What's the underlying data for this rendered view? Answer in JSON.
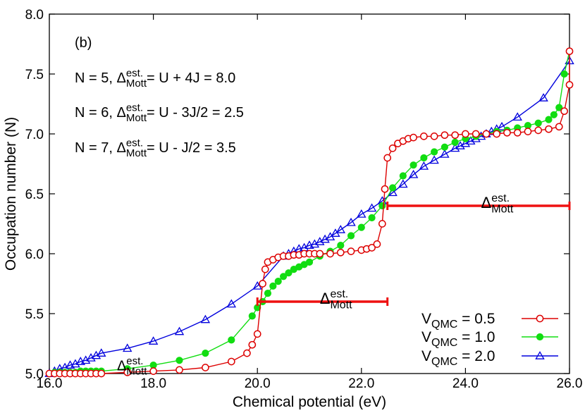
{
  "chart_data": {
    "type": "line",
    "xlabel": "Chemical potential (eV)",
    "ylabel": "Occupation number (N)",
    "xlim": [
      16.0,
      26.0
    ],
    "ylim": [
      5.0,
      8.0
    ],
    "x_ticks": [
      "16.0",
      "18.0",
      "20.0",
      "22.0",
      "24.0",
      "26.0"
    ],
    "y_ticks": [
      "5.0",
      "5.5",
      "6.0",
      "6.5",
      "7.0",
      "7.5",
      "8.0"
    ],
    "grid": false,
    "legend_placement": "bottom-right",
    "panel_label": "(b)",
    "annotations": [
      {
        "prefix": "N = 5, ",
        "sym": "Δ",
        "sub": "Mott",
        "sup": "est.",
        "suffix": " = U + 4J = 8.0"
      },
      {
        "prefix": "N = 6, ",
        "sym": "Δ",
        "sub": "Mott",
        "sup": "est.",
        "suffix": " = U - 3J/2 = 2.5"
      },
      {
        "prefix": "N = 7, ",
        "sym": "Δ",
        "sub": "Mott",
        "sup": "est.",
        "suffix": " = U - J/2 = 3.5"
      }
    ],
    "gap_bars": [
      {
        "x_start": 20.0,
        "x_end": 22.5,
        "y": 5.6,
        "sym": "Δ",
        "sub": "Mott",
        "sup": "est.",
        "label_x": 21.2,
        "label_y": 5.7
      },
      {
        "x_start": 22.5,
        "x_end": 26.0,
        "y": 6.4,
        "sym": "Δ",
        "sub": "Mott",
        "sup": "est.",
        "label_x": 24.3,
        "label_y": 6.5
      }
    ],
    "left_label": {
      "sym": "Δ",
      "sub": "Mott",
      "sup": "est.",
      "x": 17.3,
      "y": 5.18
    },
    "bar_color": "#ee1111",
    "series": [
      {
        "name_main": "V",
        "name_sub": "QMC",
        "name_value": " = 0.5",
        "color": "#dd0000",
        "marker": "open-circle",
        "x": [
          16.0,
          16.1,
          16.2,
          16.3,
          16.4,
          16.5,
          16.6,
          16.7,
          16.8,
          16.9,
          17.0,
          17.5,
          18.0,
          18.5,
          19.0,
          19.5,
          19.8,
          19.9,
          20.0,
          20.1,
          20.15,
          20.2,
          20.3,
          20.4,
          20.5,
          20.6,
          20.7,
          20.8,
          20.9,
          21.0,
          21.1,
          21.2,
          21.4,
          21.6,
          21.8,
          22.0,
          22.1,
          22.2,
          22.3,
          22.4,
          22.45,
          22.5,
          22.6,
          22.7,
          22.8,
          22.9,
          23.0,
          23.2,
          23.4,
          23.6,
          23.8,
          24.0,
          24.2,
          24.4,
          24.6,
          24.8,
          25.0,
          25.2,
          25.4,
          25.6,
          25.8,
          25.9,
          26.0,
          26.0
        ],
        "y": [
          5.0,
          5.0,
          5.0,
          5.0,
          5.0,
          5.0,
          5.0,
          5.0,
          5.0,
          5.0,
          5.0,
          5.01,
          5.02,
          5.03,
          5.05,
          5.1,
          5.17,
          5.24,
          5.33,
          5.75,
          5.87,
          5.93,
          5.95,
          5.97,
          5.98,
          5.98,
          5.99,
          5.99,
          6.0,
          6.0,
          6.0,
          6.0,
          6.0,
          6.01,
          6.02,
          6.03,
          6.04,
          6.05,
          6.08,
          6.25,
          6.54,
          6.8,
          6.88,
          6.92,
          6.94,
          6.96,
          6.97,
          6.98,
          6.98,
          6.99,
          6.99,
          7.0,
          7.0,
          7.0,
          7.0,
          7.01,
          7.01,
          7.02,
          7.03,
          7.04,
          7.06,
          7.19,
          7.41,
          7.69
        ]
      },
      {
        "name_main": "V",
        "name_sub": "QMC",
        "name_value": " = 1.0",
        "color": "#11dd11",
        "marker": "filled-circle",
        "x": [
          16.0,
          16.1,
          16.2,
          16.3,
          16.4,
          16.5,
          16.6,
          16.7,
          16.8,
          16.9,
          17.0,
          17.5,
          18.0,
          18.5,
          19.0,
          19.5,
          19.9,
          20.0,
          20.1,
          20.2,
          20.3,
          20.4,
          20.5,
          20.6,
          20.7,
          20.8,
          20.9,
          21.0,
          21.2,
          21.4,
          21.6,
          21.8,
          22.0,
          22.2,
          22.4,
          22.6,
          22.8,
          23.0,
          23.2,
          23.4,
          23.6,
          23.8,
          24.0,
          24.2,
          24.4,
          24.6,
          24.8,
          25.0,
          25.2,
          25.4,
          25.6,
          25.7,
          25.8,
          25.9,
          26.0
        ],
        "y": [
          5.0,
          5.01,
          5.01,
          5.01,
          5.01,
          5.01,
          5.02,
          5.02,
          5.02,
          5.02,
          5.02,
          5.04,
          5.07,
          5.11,
          5.17,
          5.28,
          5.48,
          5.55,
          5.6,
          5.67,
          5.73,
          5.77,
          5.81,
          5.84,
          5.87,
          5.89,
          5.91,
          5.93,
          5.98,
          6.02,
          6.07,
          6.15,
          6.22,
          6.3,
          6.4,
          6.55,
          6.65,
          6.74,
          6.8,
          6.85,
          6.89,
          6.93,
          6.96,
          6.98,
          7.0,
          7.02,
          7.03,
          7.05,
          7.07,
          7.09,
          7.12,
          7.16,
          7.22,
          7.5,
          7.69
        ]
      },
      {
        "name_main": "V",
        "name_sub": "QMC",
        "name_value": " = 2.0",
        "color": "#0000dd",
        "marker": "open-triangle",
        "x": [
          16.0,
          16.1,
          16.2,
          16.3,
          16.4,
          16.5,
          16.6,
          16.7,
          16.8,
          16.9,
          17.0,
          17.5,
          18.0,
          18.5,
          19.0,
          19.5,
          20.0,
          20.5,
          20.6,
          20.7,
          20.8,
          20.9,
          21.0,
          21.1,
          21.2,
          21.3,
          21.4,
          21.5,
          21.6,
          21.8,
          22.0,
          22.2,
          22.4,
          22.6,
          22.8,
          23.0,
          23.2,
          23.4,
          23.6,
          23.8,
          23.9,
          24.0,
          24.1,
          24.2,
          24.3,
          24.4,
          24.5,
          24.6,
          24.7,
          25.0,
          25.5,
          26.0
        ],
        "y": [
          5.0,
          5.02,
          5.04,
          5.05,
          5.07,
          5.08,
          5.1,
          5.11,
          5.13,
          5.15,
          5.17,
          5.21,
          5.27,
          5.35,
          5.45,
          5.58,
          5.73,
          5.98,
          6.0,
          6.02,
          6.04,
          6.05,
          6.07,
          6.08,
          6.1,
          6.12,
          6.14,
          6.17,
          6.2,
          6.26,
          6.33,
          6.38,
          6.44,
          6.51,
          6.58,
          6.66,
          6.73,
          6.78,
          6.83,
          6.88,
          6.9,
          6.92,
          6.94,
          6.96,
          6.98,
          7.0,
          7.02,
          7.04,
          7.06,
          7.14,
          7.3,
          7.61
        ]
      }
    ]
  }
}
